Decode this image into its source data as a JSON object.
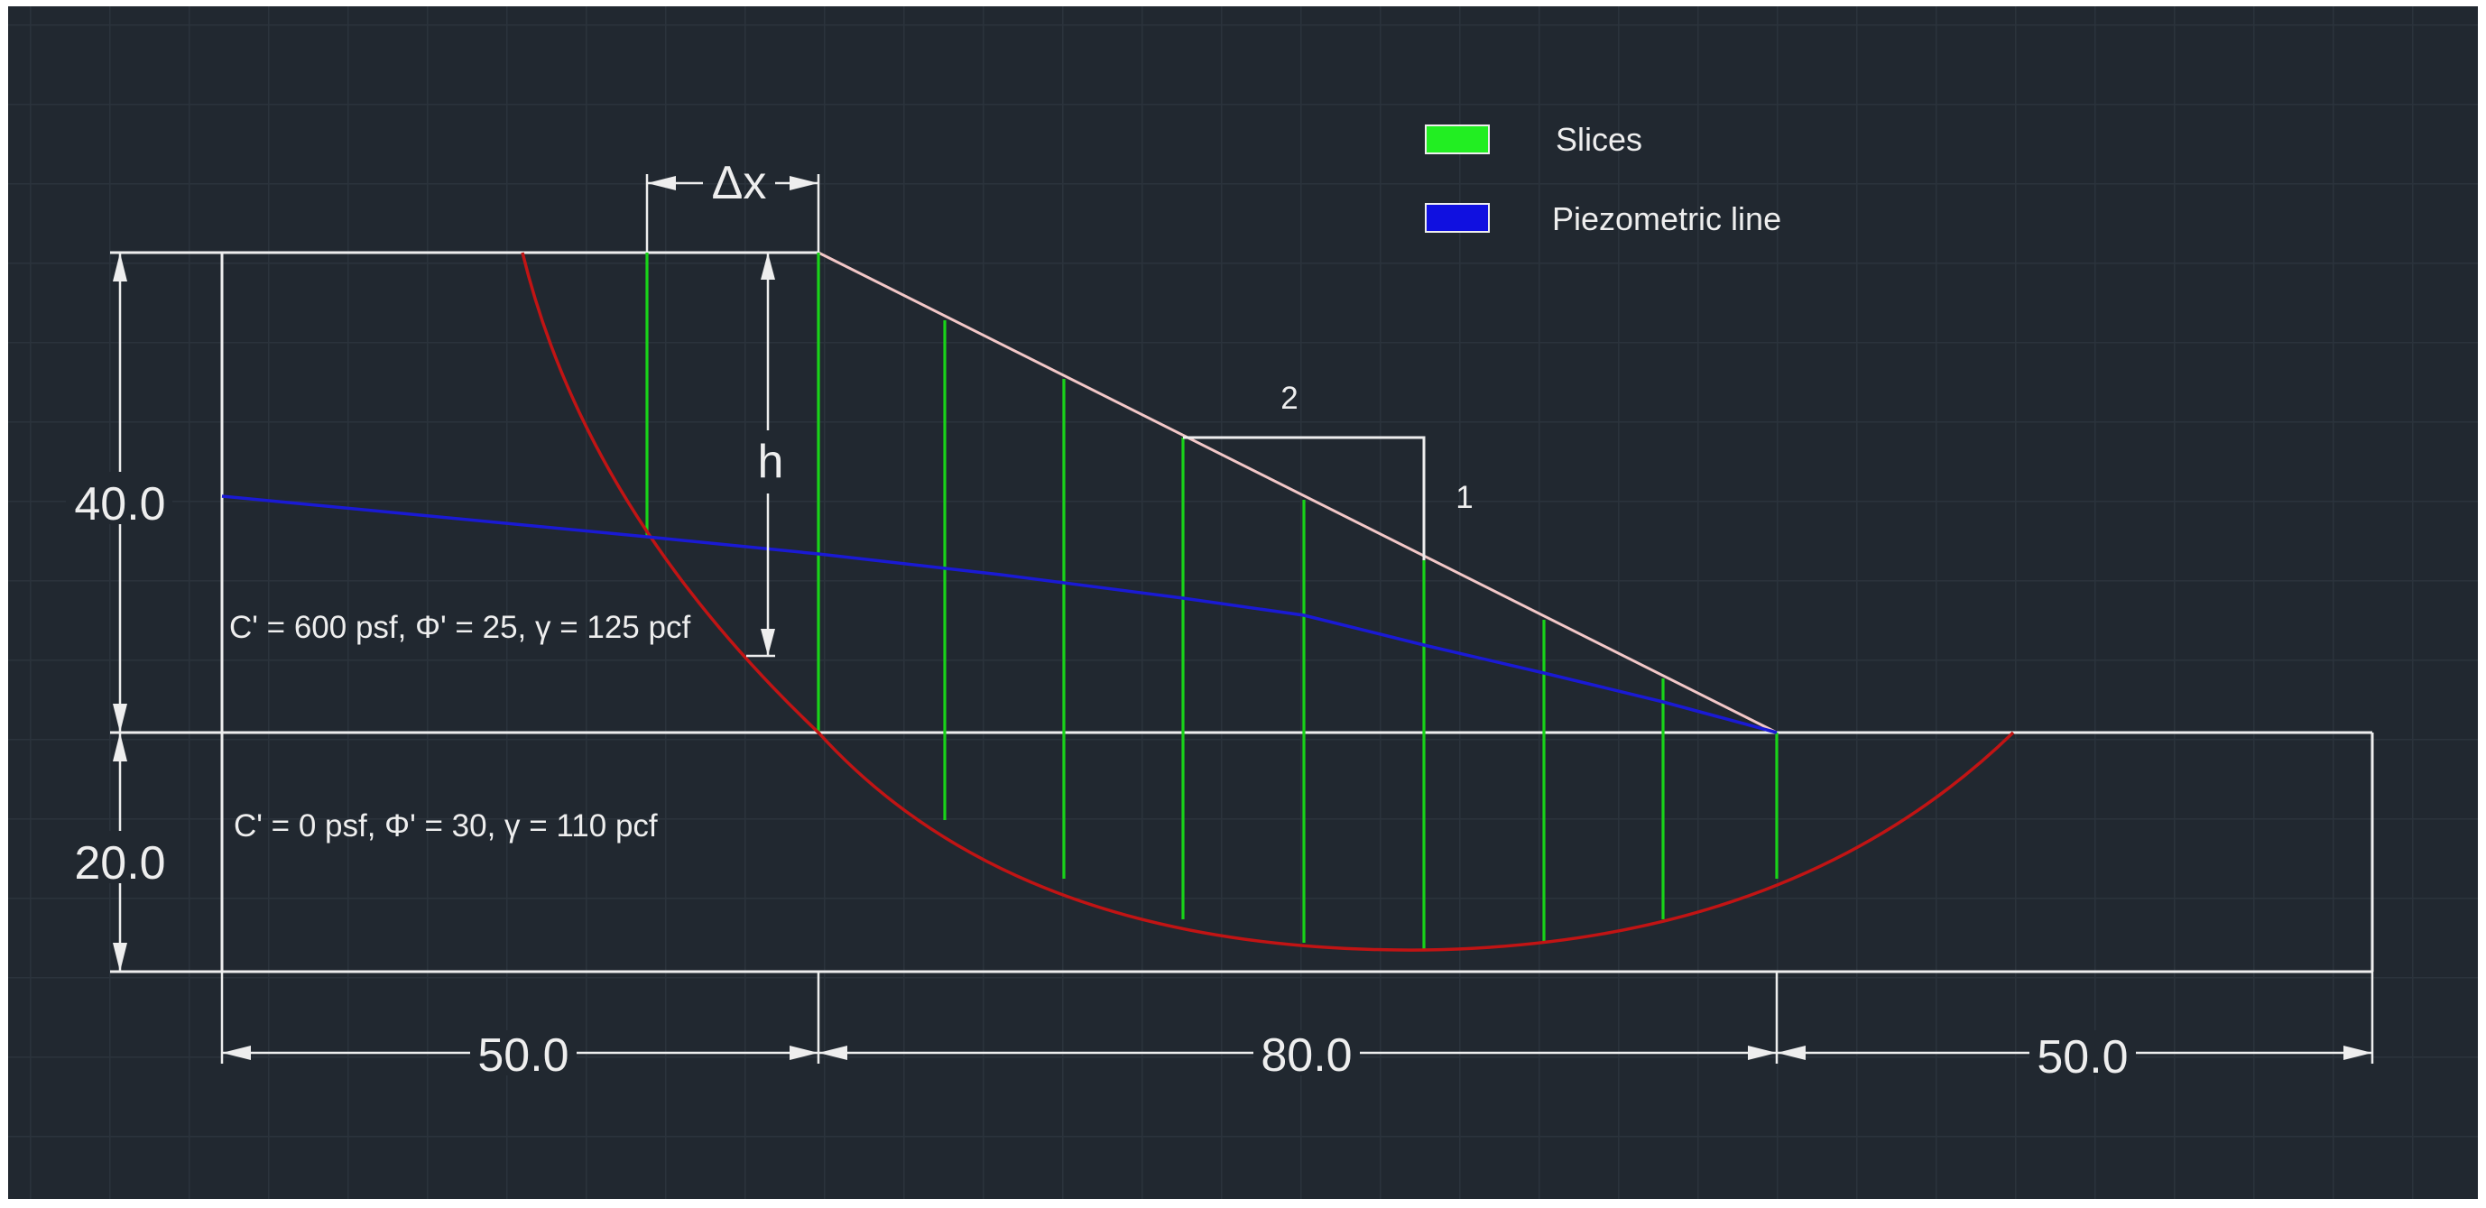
{
  "legend": {
    "items": [
      {
        "label": "Slices",
        "color": "#22ee22"
      },
      {
        "label": "Piezometric line",
        "color": "#1010e0"
      }
    ]
  },
  "dimensions": {
    "height_upper": "40.0",
    "height_lower": "20.0",
    "width_left": "50.0",
    "width_mid": "80.0",
    "width_right": "50.0",
    "slice_width": "Δx",
    "slice_height": "h"
  },
  "slope_ratio": {
    "horizontal": "2",
    "vertical": "1"
  },
  "materials": {
    "upper": "C' = 600 psf, Φ' = 25, γ = 125 pcf",
    "lower": "C' = 0 psf, Φ' = 30, γ = 110 pcf"
  },
  "colors": {
    "background": "#212830",
    "outline": "#eeeeee",
    "slope_face": "#f2c7c7",
    "slip_surface": "#c11414",
    "piezometric_line": "#1a1ad4",
    "slices": "#19d319"
  }
}
